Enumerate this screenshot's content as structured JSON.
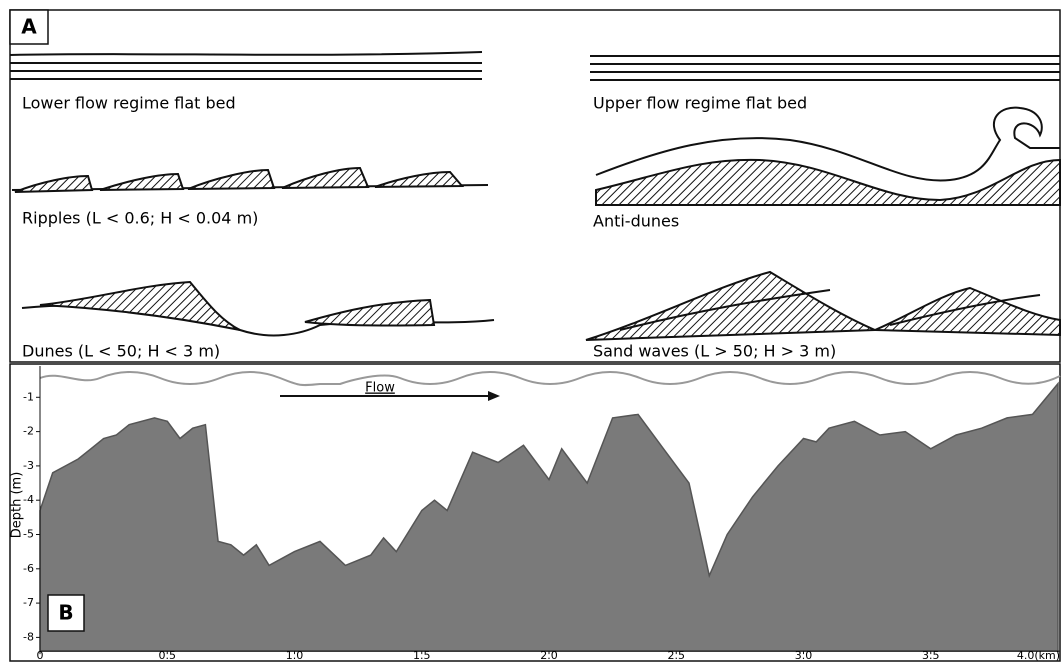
{
  "panel_a": {
    "label": "A",
    "bedforms": [
      "Lower flow regime flat bed",
      "Upper flow regime flat bed",
      "Ripples (L < 0.6; H < 0.04 m)",
      "Anti-dunes",
      "Dunes   (L < 50; H < 3 m)",
      "Sand waves (L > 50; H > 3 m)"
    ]
  },
  "chart_data": {
    "type": "area",
    "panel_label": "B",
    "y_label": "Depth (m)",
    "annotation": "Flow",
    "x": [
      0,
      0.05,
      0.1,
      0.15,
      0.2,
      0.25,
      0.3,
      0.35,
      0.45,
      0.5,
      0.55,
      0.6,
      0.65,
      0.7,
      0.75,
      0.8,
      0.85,
      0.9,
      1.0,
      1.1,
      1.2,
      1.3,
      1.35,
      1.4,
      1.5,
      1.55,
      1.6,
      1.7,
      1.8,
      1.9,
      2.0,
      2.05,
      2.15,
      2.25,
      2.35,
      2.45,
      2.55,
      2.63,
      2.7,
      2.8,
      2.9,
      3.0,
      3.05,
      3.1,
      3.2,
      3.3,
      3.4,
      3.5,
      3.6,
      3.7,
      3.8,
      3.9,
      4.0
    ],
    "values": [
      -4.3,
      -3.2,
      -3.0,
      -2.8,
      -2.5,
      -2.2,
      -2.1,
      -1.8,
      -1.6,
      -1.7,
      -2.2,
      -1.9,
      -1.8,
      -5.2,
      -5.3,
      -5.6,
      -5.3,
      -5.9,
      -5.5,
      -5.2,
      -5.9,
      -5.6,
      -5.1,
      -5.5,
      -4.3,
      -4.0,
      -4.3,
      -2.6,
      -2.9,
      -2.4,
      -3.4,
      -2.5,
      -3.5,
      -1.6,
      -1.5,
      -2.5,
      -3.5,
      -6.2,
      -5.0,
      -3.9,
      -3.0,
      -2.2,
      -2.3,
      -1.9,
      -1.7,
      -2.1,
      -2.0,
      -2.5,
      -2.1,
      -1.9,
      -1.6,
      -1.5,
      -0.6
    ],
    "color": "#7a7a7a",
    "xlim": [
      0,
      4.07
    ],
    "ylim": [
      -8.4,
      0
    ],
    "xticks": [
      0,
      0.5,
      {
        "value": 1.0,
        "label": "1.0"
      },
      1.5,
      {
        "value": 2.0,
        "label": "2.0"
      },
      2.5,
      {
        "value": 3.0,
        "label": "3.0"
      },
      3.5,
      {
        "value": 4.0,
        "label": "4.0(km)"
      }
    ],
    "yticks": [
      -1,
      -2,
      -3,
      -4,
      -5,
      -6,
      -7,
      -8
    ]
  }
}
